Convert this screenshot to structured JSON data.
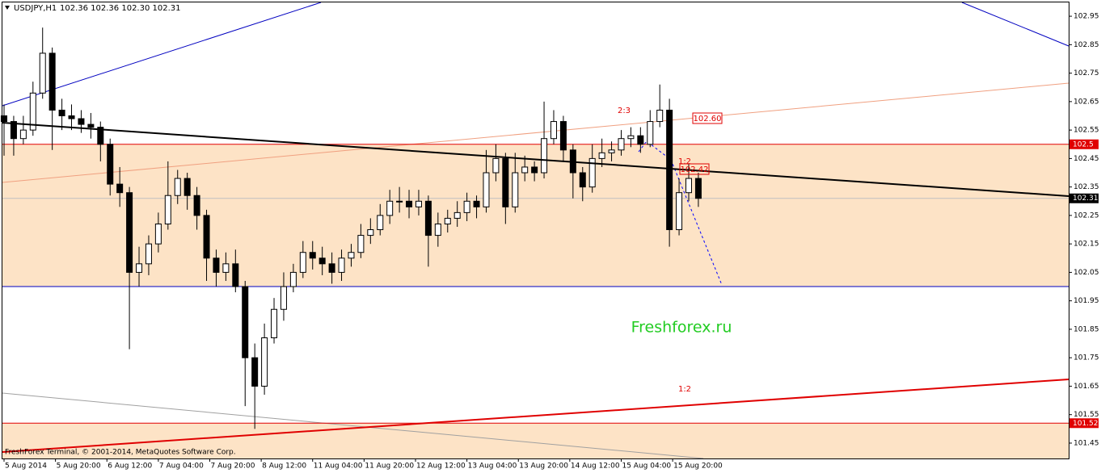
{
  "chart_data": {
    "type": "candlestick",
    "title": "USDJPY,H1",
    "subtitle": "102.36 102.36 102.30 102.31",
    "footer": "FreshForex Terminal, © 2001-2014, MetaQuotes Software Corp.",
    "watermark": "Freshforex.ru",
    "annotations": [
      "2:3",
      "102.60",
      "1:2",
      "102.42",
      "1:2"
    ],
    "x": [
      0,
      3,
      6,
      9,
      12,
      15,
      18,
      21,
      24,
      27,
      30,
      33,
      36,
      39,
      42,
      45,
      48,
      51,
      54,
      57,
      60,
      63,
      66,
      69,
      72,
      75,
      78,
      81,
      84,
      87,
      90,
      93,
      96,
      99,
      102,
      105,
      108,
      111,
      114,
      117,
      120,
      123,
      126,
      129,
      132,
      135,
      138,
      141,
      144,
      147,
      150,
      153,
      156,
      159,
      162,
      165,
      168,
      171,
      174,
      177,
      180,
      183,
      186,
      189,
      192,
      195,
      198,
      201,
      204,
      207,
      210,
      213,
      216
    ],
    "ohlc": [
      [
        102.6,
        102.64,
        102.46,
        102.58
      ],
      [
        102.58,
        102.6,
        102.46,
        102.52
      ],
      [
        102.52,
        102.6,
        102.5,
        102.55
      ],
      [
        102.55,
        102.72,
        102.53,
        102.68
      ],
      [
        102.68,
        102.91,
        102.66,
        102.82
      ],
      [
        102.82,
        102.84,
        102.48,
        102.62
      ],
      [
        102.62,
        102.66,
        102.55,
        102.6
      ],
      [
        102.6,
        102.64,
        102.55,
        102.59
      ],
      [
        102.59,
        102.62,
        102.54,
        102.57
      ],
      [
        102.57,
        102.61,
        102.52,
        102.56
      ],
      [
        102.56,
        102.58,
        102.44,
        102.5
      ],
      [
        102.5,
        102.52,
        102.32,
        102.36
      ],
      [
        102.36,
        102.42,
        102.28,
        102.33
      ],
      [
        102.33,
        102.35,
        101.78,
        102.05
      ],
      [
        102.05,
        102.14,
        102.0,
        102.08
      ],
      [
        102.08,
        102.18,
        102.04,
        102.15
      ],
      [
        102.15,
        102.26,
        102.12,
        102.22
      ],
      [
        102.22,
        102.44,
        102.2,
        102.32
      ],
      [
        102.32,
        102.41,
        102.29,
        102.38
      ],
      [
        102.38,
        102.4,
        102.27,
        102.32
      ],
      [
        102.32,
        102.35,
        102.2,
        102.25
      ],
      [
        102.25,
        102.27,
        102.02,
        102.1
      ],
      [
        102.1,
        102.13,
        102.0,
        102.05
      ],
      [
        102.05,
        102.12,
        102.02,
        102.08
      ],
      [
        102.08,
        102.13,
        101.98,
        102.0
      ],
      [
        102.0,
        102.02,
        101.58,
        101.75
      ],
      [
        101.75,
        101.8,
        101.5,
        101.65
      ],
      [
        101.65,
        101.87,
        101.62,
        101.82
      ],
      [
        101.82,
        101.96,
        101.8,
        101.92
      ],
      [
        101.92,
        102.05,
        101.88,
        102.0
      ],
      [
        102.0,
        102.08,
        101.98,
        102.05
      ],
      [
        102.05,
        102.16,
        102.03,
        102.12
      ],
      [
        102.12,
        102.16,
        102.06,
        102.1
      ],
      [
        102.1,
        102.14,
        102.04,
        102.08
      ],
      [
        102.08,
        102.12,
        102.01,
        102.05
      ],
      [
        102.05,
        102.13,
        102.02,
        102.1
      ],
      [
        102.1,
        102.15,
        102.07,
        102.12
      ],
      [
        102.12,
        102.22,
        102.1,
        102.18
      ],
      [
        102.18,
        102.24,
        102.15,
        102.2
      ],
      [
        102.2,
        102.29,
        102.18,
        102.25
      ],
      [
        102.25,
        102.34,
        102.22,
        102.3
      ],
      [
        102.3,
        102.35,
        102.26,
        102.3
      ],
      [
        102.3,
        102.34,
        102.24,
        102.28
      ],
      [
        102.28,
        102.34,
        102.25,
        102.3
      ],
      [
        102.3,
        102.32,
        102.07,
        102.18
      ],
      [
        102.18,
        102.26,
        102.14,
        102.22
      ],
      [
        102.22,
        102.27,
        102.19,
        102.24
      ],
      [
        102.24,
        102.3,
        102.21,
        102.26
      ],
      [
        102.26,
        102.33,
        102.23,
        102.3
      ],
      [
        102.3,
        102.32,
        102.24,
        102.28
      ],
      [
        102.28,
        102.48,
        102.26,
        102.4
      ],
      [
        102.4,
        102.5,
        102.37,
        102.45
      ],
      [
        102.45,
        102.47,
        102.22,
        102.28
      ],
      [
        102.28,
        102.47,
        102.26,
        102.4
      ],
      [
        102.4,
        102.46,
        102.37,
        102.42
      ],
      [
        102.42,
        102.44,
        102.37,
        102.4
      ],
      [
        102.4,
        102.65,
        102.38,
        102.52
      ],
      [
        102.52,
        102.62,
        102.5,
        102.58
      ],
      [
        102.58,
        102.6,
        102.44,
        102.48
      ],
      [
        102.48,
        102.5,
        102.31,
        102.4
      ],
      [
        102.4,
        102.42,
        102.3,
        102.35
      ],
      [
        102.35,
        102.5,
        102.33,
        102.45
      ],
      [
        102.45,
        102.52,
        102.42,
        102.47
      ],
      [
        102.47,
        102.51,
        102.44,
        102.48
      ],
      [
        102.48,
        102.55,
        102.46,
        102.52
      ],
      [
        102.52,
        102.56,
        102.49,
        102.53
      ],
      [
        102.53,
        102.56,
        102.47,
        102.5
      ],
      [
        102.5,
        102.62,
        102.49,
        102.58
      ],
      [
        102.58,
        102.71,
        102.56,
        102.62
      ],
      [
        102.62,
        102.66,
        102.14,
        102.2
      ],
      [
        102.2,
        102.38,
        102.18,
        102.33
      ],
      [
        102.33,
        102.43,
        102.3,
        102.38
      ],
      [
        102.38,
        102.4,
        102.28,
        102.31
      ]
    ],
    "up_color": "#ffffff",
    "down_color": "#000000",
    "levels": [
      {
        "value": 102.5,
        "color": "#e00000"
      },
      {
        "value": 102.0,
        "color": "#0000c0"
      },
      {
        "value": 101.52,
        "color": "#e00000"
      }
    ],
    "zone_color": "#fde3c6",
    "last_price": 102.31,
    "xlim": [
      -1.26,
      331.2
    ],
    "ylim": [
      101.396,
      103.007
    ],
    "yticks": [
      102.95,
      102.85,
      102.75,
      102.65,
      102.55,
      102.45,
      102.35,
      102.25,
      102.15,
      102.05,
      101.95,
      101.85,
      101.75,
      101.65,
      101.55,
      101.45
    ],
    "xticks": [
      {
        "value": 0,
        "label": "5 Aug 2014"
      },
      {
        "value": 16,
        "label": "5 Aug 20:00"
      },
      {
        "value": 32,
        "label": "6 Aug 12:00"
      },
      {
        "value": 48,
        "label": "7 Aug 04:00"
      },
      {
        "value": 64,
        "label": "7 Aug 20:00"
      },
      {
        "value": 80,
        "label": "8 Aug 12:00"
      },
      {
        "value": 96,
        "label": "11 Aug 04:00"
      },
      {
        "value": 112,
        "label": "11 Aug 20:00"
      },
      {
        "value": 128,
        "label": "12 Aug 12:00"
      },
      {
        "value": 144,
        "label": "13 Aug 04:00"
      },
      {
        "value": 160,
        "label": "13 Aug 20:00"
      },
      {
        "value": 176,
        "label": "14 Aug 12:00"
      },
      {
        "value": 192,
        "label": "15 Aug 04:00"
      },
      {
        "value": 208,
        "label": "15 Aug 20:00"
      }
    ]
  }
}
